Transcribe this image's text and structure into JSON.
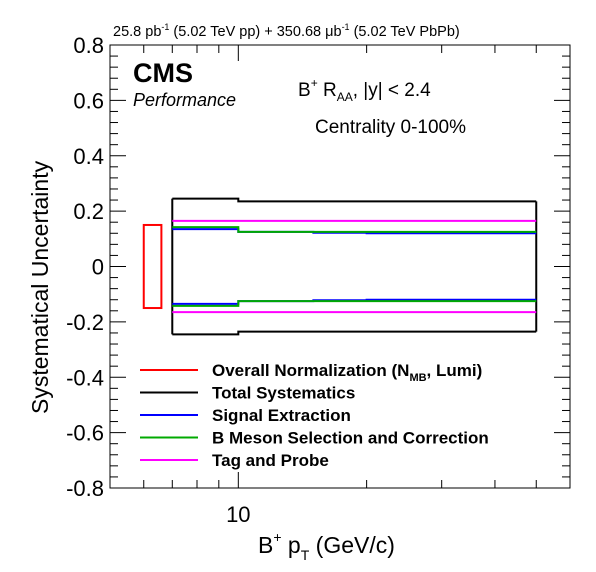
{
  "header": {
    "lumi_pp": "25.8 pb",
    "lumi_pp_sup": "-1",
    "lumi_pp_tail": " (5.02 TeV pp) + 350.68 ",
    "lumi_pbpb_unit": "μb",
    "lumi_pbpb_sup": "-1",
    "lumi_pbpb_tail": " (5.02 TeV PbPb)"
  },
  "labels": {
    "cms": "CMS",
    "performance": "Performance",
    "obs_main": "B",
    "obs_plus": "+",
    "obs_R": " R",
    "obs_sub": "AA",
    "obs_tail": ", |y| < 2.4",
    "centrality": "Centrality 0-100%"
  },
  "axes": {
    "ylabel": "Systematical Uncertainty",
    "xlabel_B": "B",
    "xlabel_plus": "+",
    "xlabel_p": " p",
    "xlabel_sub": "T",
    "xlabel_tail": " (GeV/c)"
  },
  "colors": {
    "normalization": "#ff0000",
    "total": "#000000",
    "signal": "#0000ff",
    "selection": "#00aa00",
    "tagprobe": "#ff00ff"
  },
  "chart_data": {
    "type": "line",
    "x_scale": "log",
    "xlim": [
      5,
      60
    ],
    "ylim": [
      -0.8,
      0.8
    ],
    "x_tick_labels": [
      {
        "value": 10,
        "label": "10"
      }
    ],
    "y_tick_labels": [
      "-0.8",
      "-0.6",
      "-0.4",
      "-0.2",
      "0",
      "0.2",
      "0.4",
      "0.6",
      "0.8"
    ],
    "y_ticks": [
      -0.8,
      -0.6,
      -0.4,
      -0.2,
      0,
      0.2,
      0.4,
      0.6,
      0.8
    ],
    "bin_edges": [
      7,
      10,
      15,
      20,
      50
    ],
    "normalization_box": {
      "x": [
        6.0,
        6.6
      ],
      "y": [
        -0.15,
        0.15
      ]
    },
    "series": [
      {
        "key": "total",
        "name": "Total Systematics",
        "values": [
          0.245,
          0.235,
          0.235,
          0.235
        ]
      },
      {
        "key": "signal",
        "name": "Signal Extraction",
        "values": [
          0.135,
          0.125,
          0.122,
          0.12
        ]
      },
      {
        "key": "selection",
        "name": "B Meson Selection and Correction",
        "values": [
          0.142,
          0.125,
          0.125,
          0.125
        ]
      },
      {
        "key": "tagprobe",
        "name": "Tag and Probe",
        "values": [
          0.165,
          0.165,
          0.165,
          0.165
        ]
      }
    ],
    "legend": [
      {
        "key": "normalization",
        "label": "Overall Normalization (N",
        "sub": "MB",
        "tail": ", Lumi)"
      },
      {
        "key": "total",
        "label": "Total Systematics"
      },
      {
        "key": "signal",
        "label": "Signal Extraction"
      },
      {
        "key": "selection",
        "label": "B Meson Selection and Correction"
      },
      {
        "key": "tagprobe",
        "label": "Tag and Probe"
      }
    ],
    "legend_position": "bottom-center",
    "grid": false
  }
}
